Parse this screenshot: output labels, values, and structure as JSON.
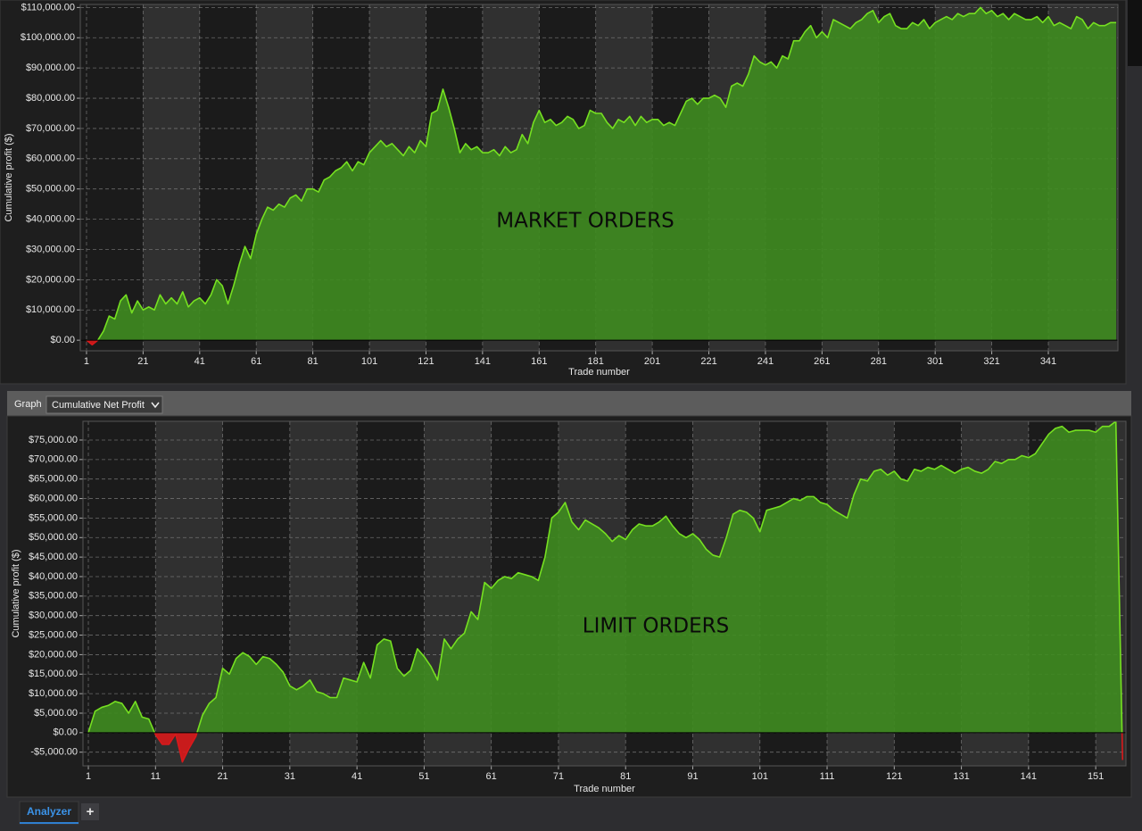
{
  "chart_data": [
    {
      "type": "area",
      "annotation": "MARKET ORDERS",
      "x_label": "Trade number",
      "y_label": "Cumulative profit ($)",
      "x": [
        1,
        3,
        5,
        7,
        9,
        11,
        13,
        15,
        17,
        19,
        21,
        23,
        25,
        27,
        29,
        31,
        33,
        35,
        37,
        39,
        41,
        43,
        45,
        47,
        49,
        51,
        53,
        55,
        57,
        59,
        61,
        63,
        65,
        67,
        69,
        71,
        73,
        75,
        77,
        79,
        81,
        83,
        85,
        87,
        89,
        91,
        93,
        95,
        97,
        99,
        101,
        103,
        105,
        107,
        109,
        111,
        113,
        115,
        117,
        119,
        121,
        123,
        125,
        127,
        129,
        131,
        133,
        135,
        137,
        139,
        141,
        143,
        145,
        147,
        149,
        151,
        153,
        155,
        157,
        159,
        161,
        163,
        165,
        167,
        169,
        171,
        173,
        175,
        177,
        179,
        181,
        183,
        185,
        187,
        189,
        191,
        193,
        195,
        197,
        199,
        201,
        203,
        205,
        207,
        209,
        211,
        213,
        215,
        217,
        219,
        221,
        223,
        225,
        227,
        229,
        231,
        233,
        235,
        237,
        239,
        241,
        243,
        245,
        247,
        249,
        251,
        253,
        255,
        257,
        259,
        261,
        263,
        265,
        267,
        269,
        271,
        273,
        275,
        277,
        279,
        281,
        283,
        285,
        287,
        289,
        291,
        293,
        295,
        297,
        299,
        301,
        303,
        305,
        307,
        309,
        311,
        313,
        315,
        317,
        319,
        321,
        323,
        325,
        327,
        329,
        331,
        333,
        335,
        337,
        339,
        341,
        343,
        345,
        347,
        349,
        351,
        353,
        355,
        357,
        359,
        361,
        363,
        365
      ],
      "series": [
        {
          "color": "#76e021",
          "fill_color": "#3f8c20",
          "negative_color": "#d9191b",
          "values": [
            0,
            -1500,
            0,
            3000,
            8000,
            7000,
            13000,
            15000,
            9000,
            13000,
            10000,
            11000,
            10000,
            15000,
            12000,
            14000,
            12000,
            16000,
            11000,
            13000,
            14000,
            12000,
            15000,
            20000,
            18000,
            12000,
            18000,
            25000,
            31000,
            27000,
            35000,
            40000,
            44000,
            43000,
            45000,
            44000,
            47000,
            48000,
            46000,
            50000,
            50000,
            49000,
            53000,
            54000,
            56000,
            57000,
            59000,
            56000,
            59000,
            58000,
            62000,
            64000,
            66000,
            64000,
            65000,
            63000,
            61000,
            64000,
            62000,
            66000,
            64000,
            75000,
            76000,
            83000,
            77000,
            70000,
            62000,
            65000,
            63000,
            64000,
            62000,
            62000,
            63000,
            61000,
            64000,
            62000,
            63000,
            68000,
            65000,
            72000,
            76000,
            72000,
            73000,
            71000,
            72000,
            74000,
            73000,
            70000,
            71000,
            76000,
            75000,
            75000,
            72000,
            70000,
            73000,
            72000,
            74000,
            71000,
            74000,
            72000,
            73000,
            73000,
            71000,
            72000,
            71000,
            75000,
            79000,
            80000,
            78000,
            80000,
            80000,
            81000,
            80000,
            77000,
            84000,
            85000,
            84000,
            88000,
            94000,
            92000,
            91000,
            92000,
            90000,
            94000,
            93000,
            99000,
            99000,
            102000,
            104000,
            100000,
            102000,
            100000,
            106000,
            105000,
            104000,
            103000,
            105000,
            106000,
            108000,
            109000,
            105000,
            107000,
            108000,
            104000,
            103000,
            103000,
            105000,
            104000,
            106000,
            103000,
            105000,
            106000,
            107000,
            106000,
            108000,
            107000,
            108000,
            108000,
            110000,
            108000,
            109000,
            107000,
            108000,
            106000,
            108000,
            107000,
            106000,
            106000,
            107000,
            105000,
            107000,
            104000,
            105000,
            104000,
            103000,
            107000,
            106000,
            103000,
            105000,
            104000,
            104000,
            105000,
            105000
          ]
        }
      ],
      "xlim": [
        -1.2,
        365.6
      ],
      "xticks": [
        1,
        21,
        41,
        61,
        81,
        101,
        121,
        141,
        161,
        181,
        201,
        221,
        241,
        261,
        281,
        301,
        321,
        341
      ],
      "ylim": [
        -3500,
        111000
      ],
      "yticks": [
        {
          "value": 0,
          "label": "$0.00"
        },
        {
          "value": 10000,
          "label": "$10,000.00"
        },
        {
          "value": 20000,
          "label": "$20,000.00"
        },
        {
          "value": 30000,
          "label": "$30,000.00"
        },
        {
          "value": 40000,
          "label": "$40,000.00"
        },
        {
          "value": 50000,
          "label": "$50,000.00"
        },
        {
          "value": 60000,
          "label": "$60,000.00"
        },
        {
          "value": 70000,
          "label": "$70,000.00"
        },
        {
          "value": 80000,
          "label": "$80,000.00"
        },
        {
          "value": 90000,
          "label": "$90,000.00"
        },
        {
          "value": 100000,
          "label": "$100,000.00"
        },
        {
          "value": 110000,
          "label": "$110,000.00"
        }
      ],
      "grid": true
    },
    {
      "type": "area",
      "annotation": "LIMIT ORDERS",
      "x_label": "Trade number",
      "y_label": "Cumulative profit ($)",
      "x": [
        1,
        2,
        3,
        4,
        5,
        6,
        7,
        8,
        9,
        10,
        11,
        12,
        13,
        14,
        15,
        16,
        17,
        18,
        19,
        20,
        21,
        22,
        23,
        24,
        25,
        26,
        27,
        28,
        29,
        30,
        31,
        32,
        33,
        34,
        35,
        36,
        37,
        38,
        39,
        40,
        41,
        42,
        43,
        44,
        45,
        46,
        47,
        48,
        49,
        50,
        51,
        52,
        53,
        54,
        55,
        56,
        57,
        58,
        59,
        60,
        61,
        62,
        63,
        64,
        65,
        66,
        67,
        68,
        69,
        70,
        71,
        72,
        73,
        74,
        75,
        76,
        77,
        78,
        79,
        80,
        81,
        82,
        83,
        84,
        85,
        86,
        87,
        88,
        89,
        90,
        91,
        92,
        93,
        94,
        95,
        96,
        97,
        98,
        99,
        100,
        101,
        102,
        103,
        104,
        105,
        106,
        107,
        108,
        109,
        110,
        111,
        112,
        113,
        114,
        115,
        116,
        117,
        118,
        119,
        120,
        121,
        122,
        123,
        124,
        125,
        126,
        127,
        128,
        129,
        130,
        131,
        132,
        133,
        134,
        135,
        136,
        137,
        138,
        139,
        140,
        141,
        142,
        143,
        144,
        145,
        146,
        147,
        148,
        149,
        150,
        151,
        152,
        153,
        154,
        155
      ],
      "series": [
        {
          "color": "#76e021",
          "fill_color": "#3f8c20",
          "negative_color": "#d9191b",
          "values": [
            0,
            5500,
            6500,
            7000,
            8000,
            7500,
            5000,
            8000,
            4000,
            3500,
            -500,
            -3000,
            -3000,
            -300,
            -7500,
            -4000,
            -1000,
            4500,
            7500,
            9000,
            16500,
            15000,
            19000,
            20500,
            19500,
            17500,
            19500,
            19000,
            17500,
            15500,
            12000,
            11000,
            12000,
            13500,
            10500,
            10000,
            9000,
            9000,
            14000,
            13500,
            13000,
            18000,
            14000,
            22500,
            24000,
            23500,
            16500,
            14500,
            16000,
            21500,
            19500,
            17000,
            13500,
            24000,
            21500,
            24000,
            25500,
            31000,
            29000,
            38500,
            37000,
            39000,
            40000,
            39500,
            41000,
            40500,
            40000,
            39000,
            45000,
            55000,
            56500,
            59000,
            54000,
            52000,
            54500,
            53500,
            52500,
            51000,
            49000,
            50500,
            49500,
            52000,
            53500,
            53000,
            53000,
            54000,
            55500,
            53000,
            51000,
            50000,
            51000,
            49500,
            47000,
            45500,
            45000,
            50000,
            56000,
            57000,
            56500,
            55000,
            51500,
            57000,
            57500,
            58000,
            59000,
            60000,
            59500,
            60500,
            60500,
            59000,
            58500,
            57000,
            56000,
            55000,
            61000,
            65000,
            64500,
            67000,
            67500,
            66000,
            67000,
            65000,
            64500,
            67500,
            67000,
            68000,
            67500,
            68500,
            67500,
            66500,
            67500,
            68000,
            67000,
            66500,
            67500,
            69500,
            69000,
            70000,
            70000,
            71000,
            70500,
            71500,
            74000,
            76500,
            78000,
            78500,
            77000,
            77500,
            77500,
            77500,
            77000,
            78500,
            78500,
            79800,
            -7000
          ]
        }
      ],
      "xlim": [
        0.2,
        155.5
      ],
      "xticks": [
        1,
        11,
        21,
        31,
        41,
        51,
        61,
        71,
        81,
        91,
        101,
        111,
        121,
        131,
        141,
        151
      ],
      "ylim": [
        -8500,
        79800
      ],
      "yticks": [
        {
          "value": -5000,
          "label": "-$5,000.00"
        },
        {
          "value": 0,
          "label": "$0.00"
        },
        {
          "value": 5000,
          "label": "$5,000.00"
        },
        {
          "value": 10000,
          "label": "$10,000.00"
        },
        {
          "value": 15000,
          "label": "$15,000.00"
        },
        {
          "value": 20000,
          "label": "$20,000.00"
        },
        {
          "value": 25000,
          "label": "$25,000.00"
        },
        {
          "value": 30000,
          "label": "$30,000.00"
        },
        {
          "value": 35000,
          "label": "$35,000.00"
        },
        {
          "value": 40000,
          "label": "$40,000.00"
        },
        {
          "value": 45000,
          "label": "$45,000.00"
        },
        {
          "value": 50000,
          "label": "$50,000.00"
        },
        {
          "value": 55000,
          "label": "$55,000.00"
        },
        {
          "value": 60000,
          "label": "$60,000.00"
        },
        {
          "value": 65000,
          "label": "$65,000.00"
        },
        {
          "value": 70000,
          "label": "$70,000.00"
        },
        {
          "value": 75000,
          "label": "$75,000.00"
        }
      ],
      "grid": true
    }
  ],
  "ui": {
    "graph_label": "Graph",
    "graph_select": "Cumulative Net Profit",
    "tab": "Analyzer",
    "add_tab": "+"
  }
}
